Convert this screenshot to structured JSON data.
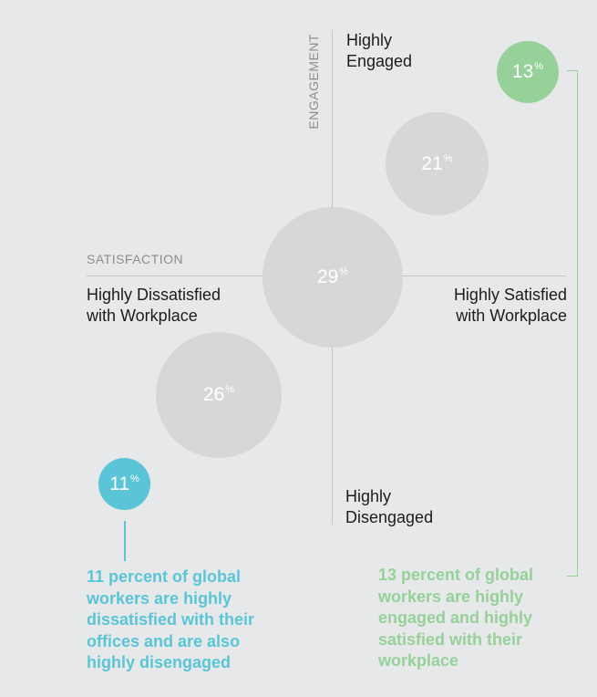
{
  "colors": {
    "neutral": "#d6d7d9",
    "teal": "#5ac5d6",
    "green": "#97d19a"
  },
  "axes": {
    "x_title": "SATISFACTION",
    "y_title": "ENGAGEMENT",
    "left_label": [
      "Highly Dissatisfied",
      "with Workplace"
    ],
    "right_label": [
      "Highly Satisfied",
      "with Workplace"
    ],
    "top_label": [
      "Highly",
      "Engaged"
    ],
    "bottom_label": [
      "Highly",
      "Disengaged"
    ]
  },
  "chart_data": {
    "type": "bubble",
    "title": "",
    "xlabel": "SATISFACTION",
    "ylabel": "ENGAGEMENT",
    "x_range": [
      "Highly Dissatisfied with Workplace",
      "Highly Satisfied with Workplace"
    ],
    "y_range": [
      "Highly Disengaged",
      "Highly Engaged"
    ],
    "unit": "%",
    "points": [
      {
        "value": 11,
        "label": "11",
        "segment": "highly dissatisfied / highly disengaged",
        "color": "#5ac5d6"
      },
      {
        "value": 26,
        "label": "26",
        "segment": "dissatisfied / disengaged",
        "color": "#d6d7d9"
      },
      {
        "value": 29,
        "label": "29",
        "segment": "neutral",
        "color": "#d6d7d9"
      },
      {
        "value": 21,
        "label": "21",
        "segment": "satisfied / engaged",
        "color": "#d6d7d9"
      },
      {
        "value": 13,
        "label": "13",
        "segment": "highly satisfied / highly engaged",
        "color": "#97d19a"
      }
    ]
  },
  "callouts": {
    "left": [
      "11 percent of global",
      "workers are highly",
      "dissatisfied with their",
      "offices and are also",
      "highly disengaged"
    ],
    "right": [
      "13 percent of global",
      "workers are highly",
      "engaged and highly",
      "satisfied with their",
      "workplace"
    ]
  }
}
